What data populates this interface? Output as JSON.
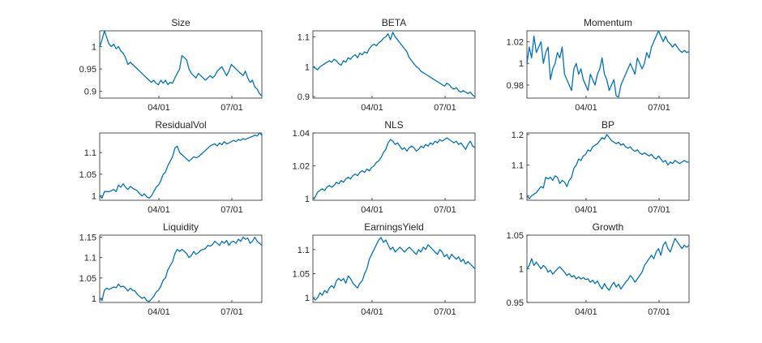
{
  "chart_data": [
    {
      "type": "line",
      "title": "Size",
      "x_ticks": [
        "04/01",
        "07/01"
      ],
      "y_ticks": [
        "0.9",
        "0.95",
        "1"
      ],
      "ylim": [
        0.885,
        1.035
      ],
      "y": [
        1.0,
        1.015,
        1.035,
        1.02,
        1.005,
        1.0,
        1.005,
        0.995,
        1.0,
        0.99,
        0.985,
        0.975,
        0.96,
        0.965,
        0.96,
        0.955,
        0.95,
        0.945,
        0.94,
        0.935,
        0.93,
        0.925,
        0.92,
        0.925,
        0.918,
        0.915,
        0.925,
        0.918,
        0.925,
        0.915,
        0.92,
        0.918,
        0.93,
        0.94,
        0.95,
        0.98,
        0.975,
        0.97,
        0.95,
        0.94,
        0.935,
        0.93,
        0.94,
        0.935,
        0.93,
        0.925,
        0.93,
        0.935,
        0.93,
        0.935,
        0.945,
        0.95,
        0.955,
        0.945,
        0.935,
        0.945,
        0.96,
        0.955,
        0.95,
        0.945,
        0.94,
        0.935,
        0.945,
        0.93,
        0.92,
        0.925,
        0.91,
        0.905,
        0.895,
        0.89
      ]
    },
    {
      "type": "line",
      "title": "BETA",
      "x_ticks": [
        "04/01",
        "07/01"
      ],
      "y_ticks": [
        "0.9",
        "1",
        "1.1"
      ],
      "ylim": [
        0.895,
        1.12
      ],
      "y": [
        1.0,
        0.995,
        0.99,
        1.0,
        1.005,
        1.01,
        1.015,
        1.02,
        1.015,
        1.025,
        1.02,
        1.01,
        1.005,
        1.02,
        1.015,
        1.03,
        1.025,
        1.035,
        1.04,
        1.03,
        1.045,
        1.04,
        1.05,
        1.045,
        1.06,
        1.07,
        1.075,
        1.07,
        1.08,
        1.085,
        1.095,
        1.1,
        1.11,
        1.09,
        1.115,
        1.1,
        1.09,
        1.08,
        1.07,
        1.06,
        1.05,
        1.03,
        1.02,
        1.01,
        1.0,
        0.995,
        0.985,
        0.98,
        0.975,
        0.97,
        0.965,
        0.96,
        0.955,
        0.95,
        0.945,
        0.94,
        0.935,
        0.945,
        0.94,
        0.93,
        0.925,
        0.93,
        0.92,
        0.915,
        0.92,
        0.915,
        0.91,
        0.915,
        0.905,
        0.9
      ]
    },
    {
      "type": "line",
      "title": "Momentum",
      "x_ticks": [
        "04/01",
        "07/01"
      ],
      "y_ticks": [
        "0.98",
        "1",
        "1.02"
      ],
      "ylim": [
        0.968,
        1.03
      ],
      "y": [
        1.0,
        1.015,
        1.005,
        1.025,
        1.01,
        1.015,
        1.02,
        1.0,
        1.01,
        1.015,
        0.985,
        0.995,
        1.0,
        1.01,
        1.005,
        1.015,
        0.99,
        0.985,
        0.98,
        0.975,
        0.995,
        1.0,
        0.99,
        0.995,
        0.985,
        0.98,
        0.975,
        0.99,
        0.985,
        0.98,
        0.99,
        0.995,
        1.005,
        0.99,
        0.985,
        0.975,
        0.98,
        0.985,
        0.97,
        0.969,
        0.98,
        0.985,
        0.99,
        0.995,
        1.0,
        0.995,
        0.99,
        1.005,
        1.0,
        0.995,
        1.0,
        1.01,
        1.005,
        1.015,
        1.02,
        1.025,
        1.03,
        1.025,
        1.02,
        1.025,
        1.02,
        1.018,
        1.015,
        1.018,
        1.015,
        1.012,
        1.01,
        1.012,
        1.01,
        1.011
      ]
    },
    {
      "type": "line",
      "title": "ResidualVol",
      "x_ticks": [
        "04/01",
        "07/01"
      ],
      "y_ticks": [
        "1",
        "1.05",
        "1.1"
      ],
      "ylim": [
        0.99,
        1.145
      ],
      "y": [
        1.0,
        0.995,
        1.01,
        1.01,
        1.01,
        1.012,
        1.015,
        1.01,
        1.025,
        1.02,
        1.028,
        1.02,
        1.015,
        1.022,
        1.018,
        1.015,
        1.012,
        1.005,
        1.0,
        1.005,
        0.998,
        0.995,
        1.0,
        1.01,
        1.02,
        1.025,
        1.035,
        1.05,
        1.055,
        1.07,
        1.08,
        1.09,
        1.11,
        1.115,
        1.1,
        1.095,
        1.09,
        1.085,
        1.08,
        1.085,
        1.09,
        1.088,
        1.09,
        1.095,
        1.1,
        1.105,
        1.11,
        1.115,
        1.118,
        1.12,
        1.115,
        1.122,
        1.118,
        1.125,
        1.12,
        1.122,
        1.125,
        1.128,
        1.125,
        1.13,
        1.128,
        1.132,
        1.13,
        1.133,
        1.135,
        1.137,
        1.14,
        1.138,
        1.145,
        1.14
      ]
    },
    {
      "type": "line",
      "title": "NLS",
      "x_ticks": [
        "04/01",
        "07/01"
      ],
      "y_ticks": [
        "1",
        "1.02",
        "1.04"
      ],
      "ylim": [
        0.999,
        1.04
      ],
      "y": [
        1.0,
        1.001,
        1.004,
        1.005,
        1.006,
        1.005,
        1.007,
        1.008,
        1.007,
        1.008,
        1.01,
        1.009,
        1.011,
        1.01,
        1.012,
        1.013,
        1.012,
        1.014,
        1.015,
        1.014,
        1.016,
        1.017,
        1.016,
        1.018,
        1.017,
        1.019,
        1.02,
        1.022,
        1.023,
        1.025,
        1.028,
        1.03,
        1.034,
        1.036,
        1.035,
        1.033,
        1.034,
        1.032,
        1.03,
        1.031,
        1.029,
        1.031,
        1.032,
        1.031,
        1.029,
        1.03,
        1.032,
        1.031,
        1.033,
        1.032,
        1.034,
        1.033,
        1.035,
        1.034,
        1.036,
        1.035,
        1.036,
        1.037,
        1.036,
        1.035,
        1.034,
        1.035,
        1.033,
        1.034,
        1.032,
        1.03,
        1.033,
        1.035,
        1.032,
        1.031
      ]
    },
    {
      "type": "line",
      "title": "BP",
      "x_ticks": [
        "04/01",
        "07/01"
      ],
      "y_ticks": [
        "1",
        "1.1",
        "1.2"
      ],
      "ylim": [
        0.985,
        1.205
      ],
      "y": [
        1.0,
        0.99,
        1.0,
        1.005,
        1.01,
        1.02,
        1.03,
        1.025,
        1.06,
        1.055,
        1.06,
        1.05,
        1.065,
        1.06,
        1.04,
        1.05,
        1.045,
        1.03,
        1.05,
        1.06,
        1.09,
        1.1,
        1.12,
        1.115,
        1.13,
        1.135,
        1.15,
        1.145,
        1.16,
        1.165,
        1.17,
        1.18,
        1.19,
        1.185,
        1.2,
        1.19,
        1.18,
        1.175,
        1.17,
        1.175,
        1.165,
        1.17,
        1.16,
        1.155,
        1.16,
        1.15,
        1.145,
        1.15,
        1.14,
        1.135,
        1.14,
        1.135,
        1.13,
        1.135,
        1.125,
        1.12,
        1.13,
        1.12,
        1.11,
        1.115,
        1.1,
        1.11,
        1.105,
        1.115,
        1.11,
        1.105,
        1.11,
        1.115,
        1.11,
        1.11
      ]
    },
    {
      "type": "line",
      "title": "Liquidity",
      "x_ticks": [
        "04/01",
        "07/01"
      ],
      "y_ticks": [
        "1",
        "1.05",
        "1.1",
        "1.15"
      ],
      "ylim": [
        0.99,
        1.155
      ],
      "y": [
        1.0,
        0.995,
        1.02,
        1.025,
        1.022,
        1.025,
        1.028,
        1.026,
        1.035,
        1.028,
        1.03,
        1.025,
        1.018,
        1.025,
        1.02,
        1.018,
        1.01,
        1.005,
        1.0,
        1.003,
        0.995,
        0.992,
        0.998,
        1.005,
        1.015,
        1.02,
        1.03,
        1.045,
        1.05,
        1.07,
        1.08,
        1.09,
        1.11,
        1.12,
        1.115,
        1.12,
        1.115,
        1.11,
        1.1,
        1.105,
        1.115,
        1.108,
        1.112,
        1.118,
        1.12,
        1.122,
        1.13,
        1.128,
        1.132,
        1.14,
        1.135,
        1.13,
        1.14,
        1.135,
        1.142,
        1.13,
        1.138,
        1.14,
        1.135,
        1.145,
        1.14,
        1.15,
        1.145,
        1.148,
        1.135,
        1.14,
        1.15,
        1.14,
        1.135,
        1.13
      ]
    },
    {
      "type": "line",
      "title": "EarningsYield",
      "x_ticks": [
        "04/01",
        "07/01"
      ],
      "y_ticks": [
        "1",
        "1.05",
        "1.1"
      ],
      "ylim": [
        0.99,
        1.13
      ],
      "y": [
        1.0,
        0.995,
        1.0,
        1.01,
        1.005,
        1.015,
        1.01,
        1.02,
        1.025,
        1.02,
        1.035,
        1.04,
        1.035,
        1.04,
        1.03,
        1.045,
        1.04,
        1.03,
        1.025,
        1.02,
        1.03,
        1.035,
        1.05,
        1.06,
        1.08,
        1.09,
        1.1,
        1.11,
        1.12,
        1.125,
        1.115,
        1.12,
        1.11,
        1.1,
        1.105,
        1.095,
        1.1,
        1.105,
        1.1,
        1.095,
        1.1,
        1.105,
        1.1,
        1.095,
        1.09,
        1.1,
        1.095,
        1.105,
        1.1,
        1.11,
        1.105,
        1.1,
        1.095,
        1.09,
        1.1,
        1.095,
        1.085,
        1.09,
        1.08,
        1.09,
        1.085,
        1.08,
        1.085,
        1.075,
        1.08,
        1.07,
        1.075,
        1.07,
        1.065,
        1.06
      ]
    },
    {
      "type": "line",
      "title": "Growth",
      "x_ticks": [
        "04/01",
        "07/01"
      ],
      "y_ticks": [
        "0.95",
        "1",
        "1.05"
      ],
      "ylim": [
        0.95,
        1.05
      ],
      "y": [
        1.0,
        1.005,
        1.015,
        1.005,
        1.01,
        1.005,
        1.0,
        1.005,
        1.002,
        0.995,
        0.998,
        0.992,
        0.996,
        1.0,
        1.003,
        0.999,
        0.995,
        0.99,
        0.993,
        0.988,
        0.99,
        0.985,
        0.988,
        0.985,
        0.987,
        0.984,
        0.985,
        0.98,
        0.983,
        0.978,
        0.982,
        0.975,
        0.97,
        0.978,
        0.972,
        0.968,
        0.975,
        0.98,
        0.973,
        0.977,
        0.97,
        0.975,
        0.98,
        0.984,
        0.99,
        0.986,
        0.98,
        0.985,
        0.99,
        0.995,
        1.005,
        1.01,
        1.015,
        1.02,
        1.015,
        1.025,
        1.03,
        1.02,
        1.035,
        1.04,
        1.03,
        1.025,
        1.035,
        1.045,
        1.04,
        1.035,
        1.03,
        1.035,
        1.032,
        1.035
      ]
    }
  ],
  "colors": {
    "line": "#0072bd",
    "axis": "#262626",
    "background": "#ffffff"
  }
}
